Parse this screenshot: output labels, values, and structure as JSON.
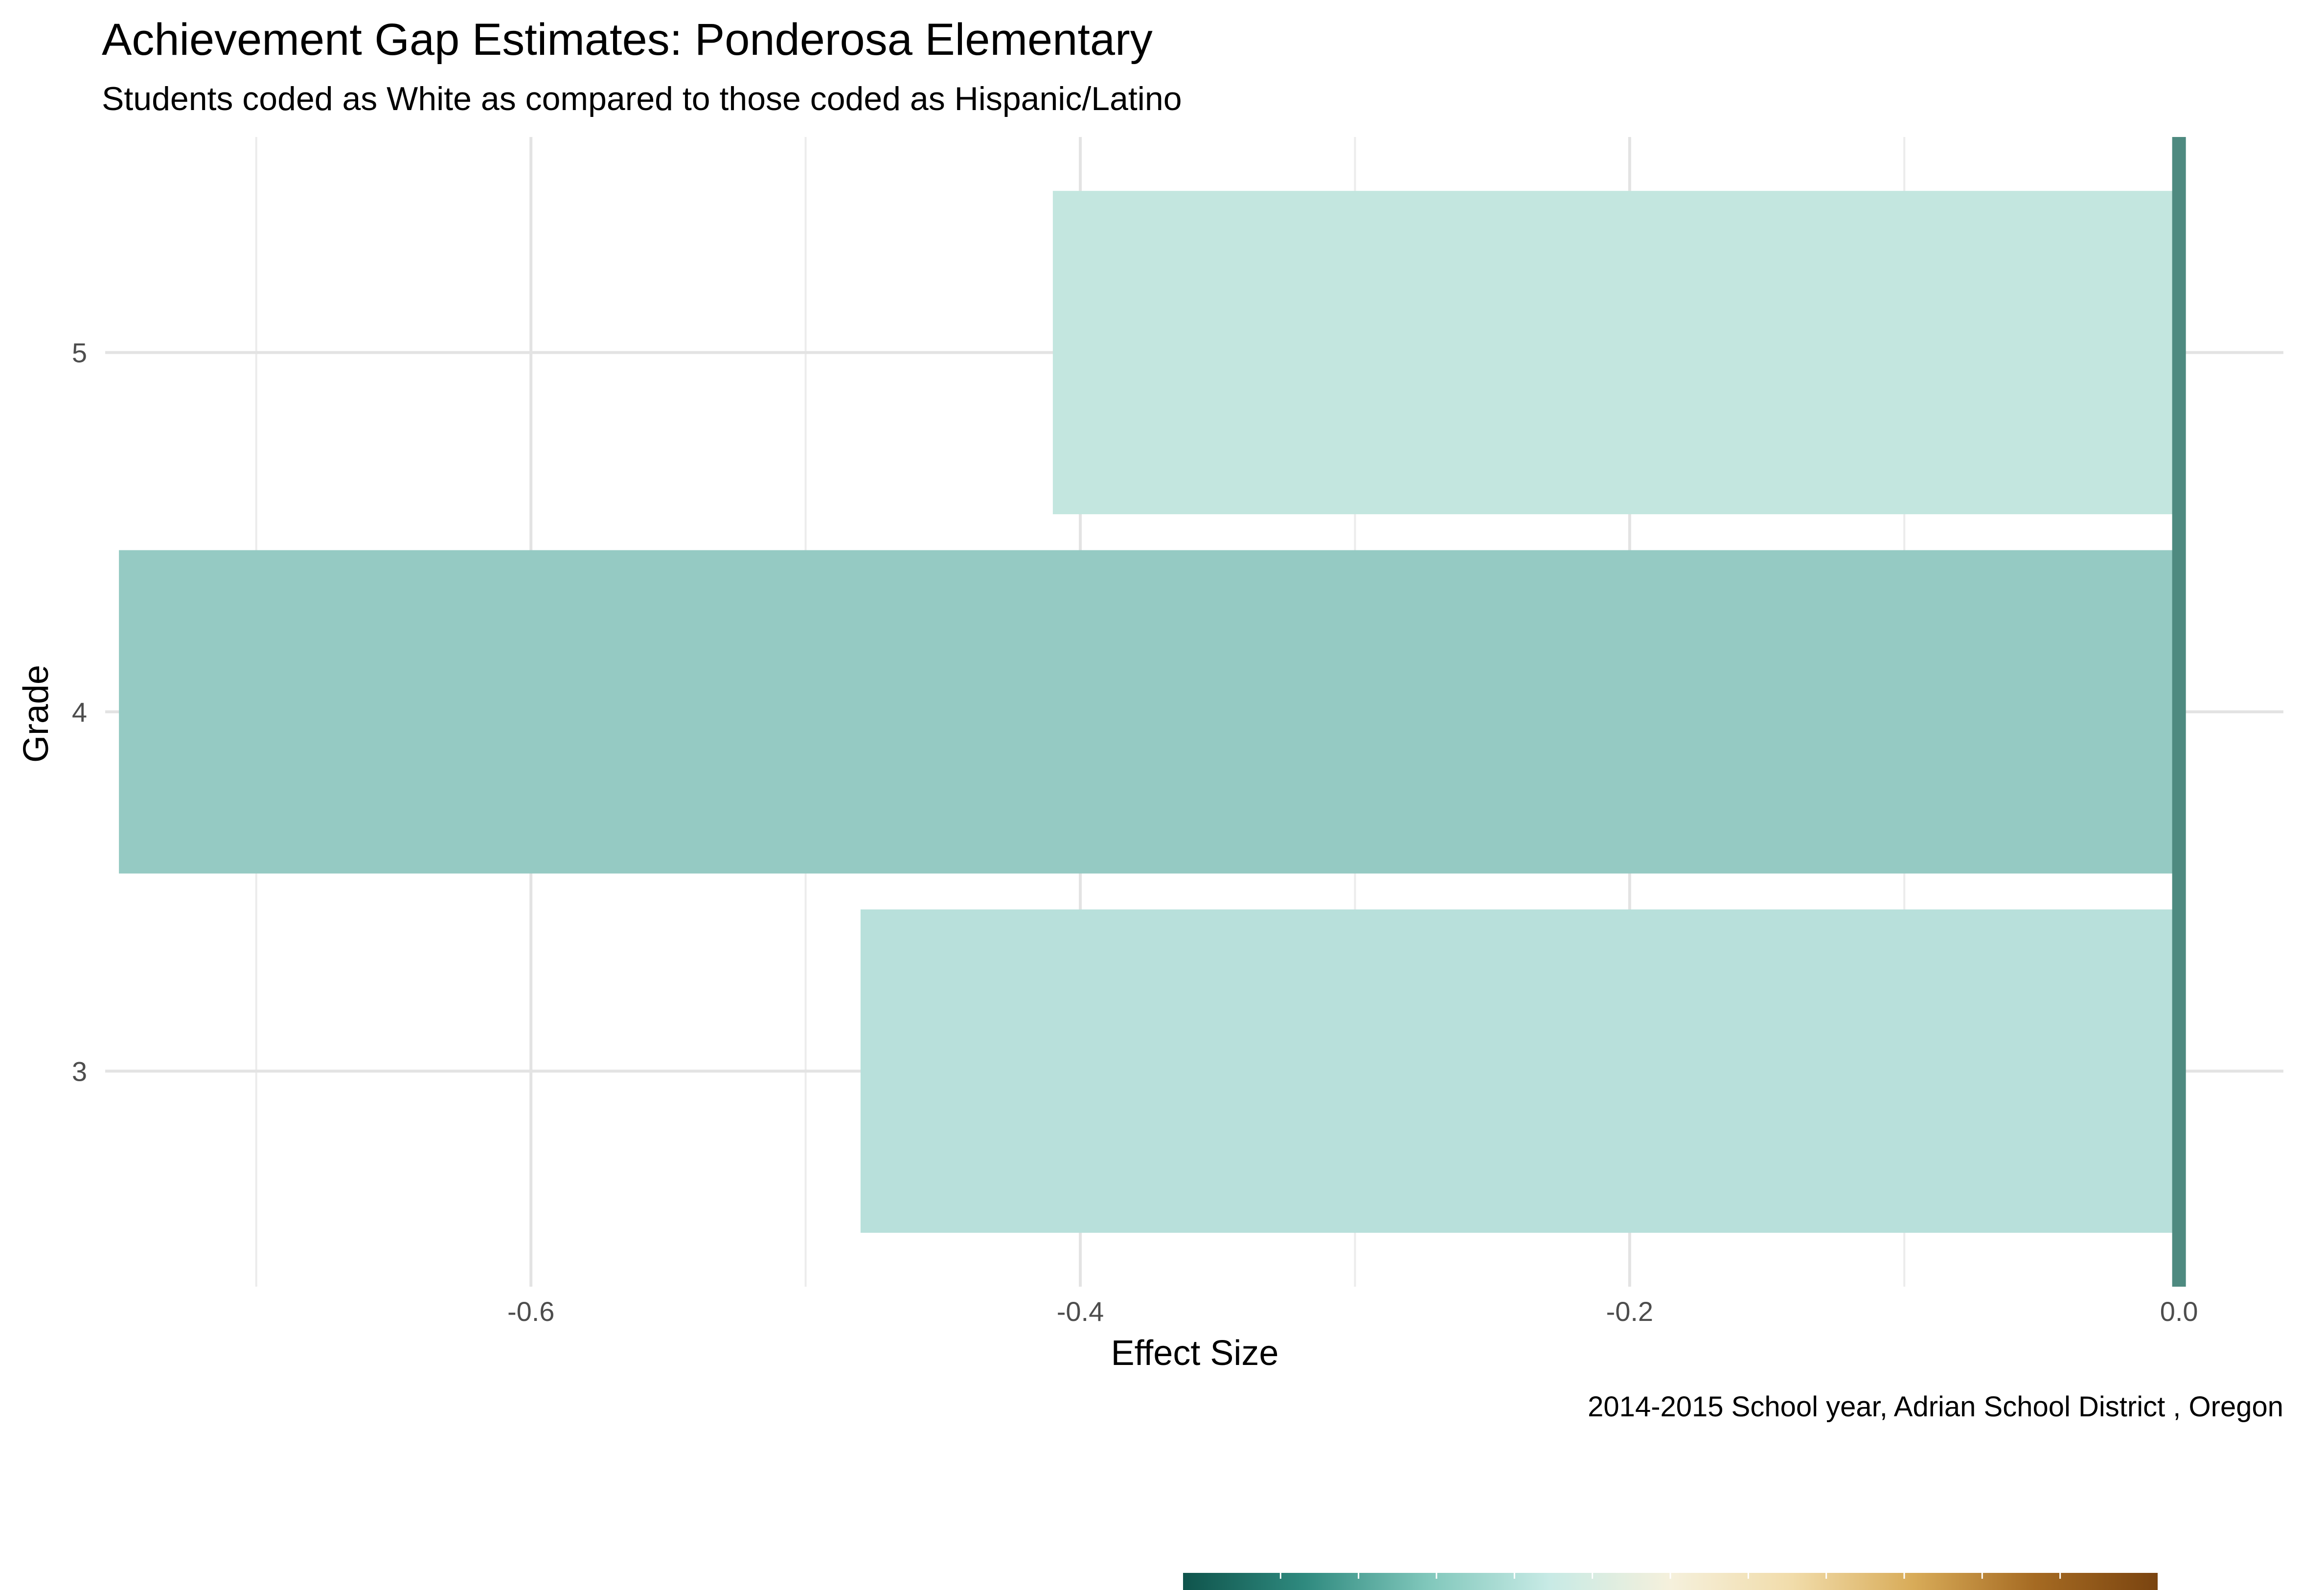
{
  "chart_data": {
    "type": "bar",
    "orientation": "horizontal",
    "title": "Achievement Gap Estimates: Ponderosa Elementary",
    "subtitle": "Students coded as White as compared to those coded as Hispanic/Latino",
    "xlabel": "Effect Size",
    "ylabel": "Grade",
    "caption": "2014-2015 School year,  Adrian School District , Oregon",
    "categories": [
      "3",
      "4",
      "5"
    ],
    "values": [
      -0.48,
      -0.75,
      -0.41
    ],
    "bar_colors": [
      "#b8e0db",
      "#95cac3",
      "#c3e6df"
    ],
    "xlim": [
      -0.755,
      0.038
    ],
    "x_ticks": [
      -0.6,
      -0.4,
      -0.2,
      0.0
    ],
    "x_tick_labels": [
      "-0.6",
      "-0.4",
      "-0.2",
      "0.0"
    ],
    "x_minor_ticks": [
      -0.7,
      -0.5,
      -0.3,
      -0.1
    ],
    "reference_line": {
      "x": 0.0,
      "color": "#4e8a80"
    },
    "grid": true,
    "legend": "none",
    "color_scale": {
      "placement": "bottom",
      "stops": [
        "#0f544c",
        "#2f8a7f",
        "#80c7bb",
        "#c7eae5",
        "#f5f0dc",
        "#f1dcaa",
        "#d8ab58",
        "#a56a22",
        "#7a4410"
      ]
    }
  }
}
